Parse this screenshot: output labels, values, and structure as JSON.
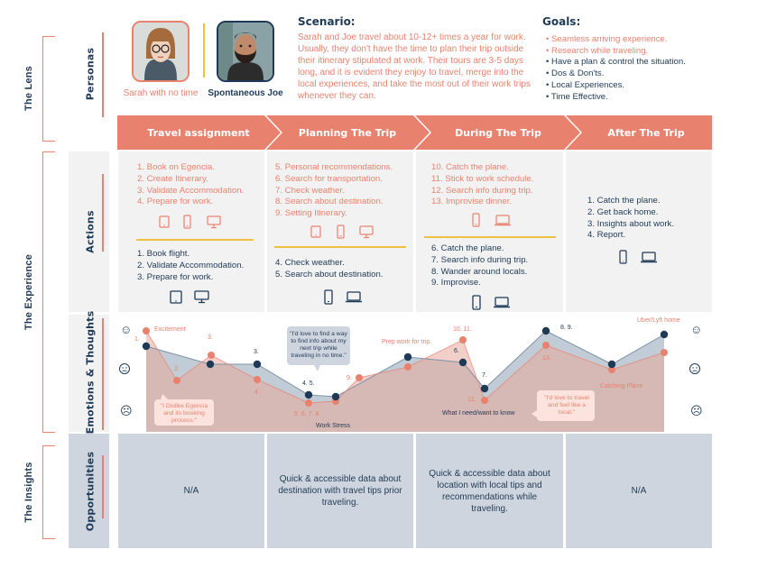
{
  "sections": {
    "lens": "The Lens",
    "experience": "The Experience",
    "insights": "The Insights"
  },
  "rows": {
    "personas": "Personas",
    "actions": "Actions",
    "emotions": "Emotions & Thoughts",
    "opportunities": "Opportunities"
  },
  "personas": [
    {
      "name": "Sarah with no time",
      "color": "#e8826e"
    },
    {
      "name": "Spontaneous Joe",
      "color": "#1f3a56"
    }
  ],
  "scenario": {
    "title": "Scenario:",
    "text": "Sarah and Joe travel about 10-12+ times a year for work. Usually, they don't have the time to plan their trip outside their itinerary stipulated at work. Their tours are 3-5 days long, and it is evident they enjoy to travel, merge into the local experiences, and take the most out of their work trips whenever they can."
  },
  "goals": {
    "title": "Goals:",
    "items": [
      {
        "text": "Seamless arriving experience.",
        "color": "orange"
      },
      {
        "text": "Research while traveling.",
        "color": "orange"
      },
      {
        "text": "Have a plan & control the situation.",
        "color": "dark"
      },
      {
        "text": "Dos & Don'ts.",
        "color": "dark"
      },
      {
        "text": "Local Experiences.",
        "color": "dark"
      },
      {
        "text": "Time Effective.",
        "color": "dark"
      }
    ]
  },
  "stages": [
    "Travel assignment",
    "Planning The Trip",
    "During The Trip",
    "After The Trip"
  ],
  "actions": [
    {
      "sarah": [
        "1. Book on Egencia.",
        "2. Create Itinerary.",
        "3. Validate Accommodation.",
        "4. Prepare for work."
      ],
      "joe": [
        "1. Book flight.",
        "2. Validate Accommodation.",
        "3. Prepare for work."
      ],
      "sarah_icons": [
        "tablet",
        "phone",
        "desktop"
      ],
      "joe_icons": [
        "tablet",
        "desktop"
      ]
    },
    {
      "sarah": [
        "5. Personal recommendations.",
        "6. Search for transportation.",
        "7. Check weather.",
        "8. Search about destination.",
        "9. Setting Itinerary."
      ],
      "joe": [
        "4. Check weather.",
        "5. Search about destination."
      ],
      "sarah_icons": [
        "tablet",
        "phone",
        "desktop"
      ],
      "joe_icons": [
        "phone",
        "laptop"
      ]
    },
    {
      "sarah": [
        "10. Catch the plane.",
        "11. Stick to work schedule.",
        "12. Search info during trip.",
        "13. Improvise dinner."
      ],
      "joe": [
        "6. Catch the plane.",
        "7. Search info during trip.",
        "8. Wander around locals.",
        "9. Improvise."
      ],
      "sarah_icons": [
        "phone",
        "laptop"
      ],
      "joe_icons": [
        "phone",
        "laptop"
      ]
    },
    {
      "sarah": [],
      "joe": [
        "1. Catch the plane.",
        "2. Get back home.",
        "3. Insights about work.",
        "4. Report."
      ],
      "sarah_icons": [],
      "joe_icons": [
        "phone",
        "laptop"
      ]
    }
  ],
  "emotions": {
    "faces": [
      "☺",
      "☹"
    ],
    "annotations": {
      "excitement": "Excitement",
      "work_stress": "Work Stress",
      "prep_work": "Prep work for trip.",
      "what_i_need": "What I need/want to know",
      "catching_plane": "Catching Plane",
      "uber": "Uber/Lyft home"
    },
    "bubbles": {
      "egencia": "\"I Dislike Egencia and its booking process.\"",
      "love_find": "\"I'd love to find a way to find info about my next trip while traveling in no time.\"",
      "love_travel": "\"I'd love to travel and feel like a local.\""
    },
    "point_labels": {
      "s1": "1.",
      "s2": "2.",
      "s3": "3.",
      "s4": "4.",
      "s5678": "5. 6. 7. 8.",
      "s9": "9.",
      "s1011": "10. 11.",
      "s12": "12.",
      "s13": "13.",
      "j3": "3.",
      "j45": "4. 5.",
      "j6": "6.",
      "j7": "7.",
      "j89": "8. 9."
    }
  },
  "opportunities": [
    "N/A",
    "Quick & accessible data about destination with travel tips prior traveling.",
    "Quick & accessible data about location with local tips and recommendations while traveling.",
    "N/A"
  ],
  "colors": {
    "orange": "#e8826e",
    "navy": "#1f3a56",
    "yellow": "#f0c040",
    "panel": "#f2f2f2",
    "slate": "#cfd5de"
  }
}
